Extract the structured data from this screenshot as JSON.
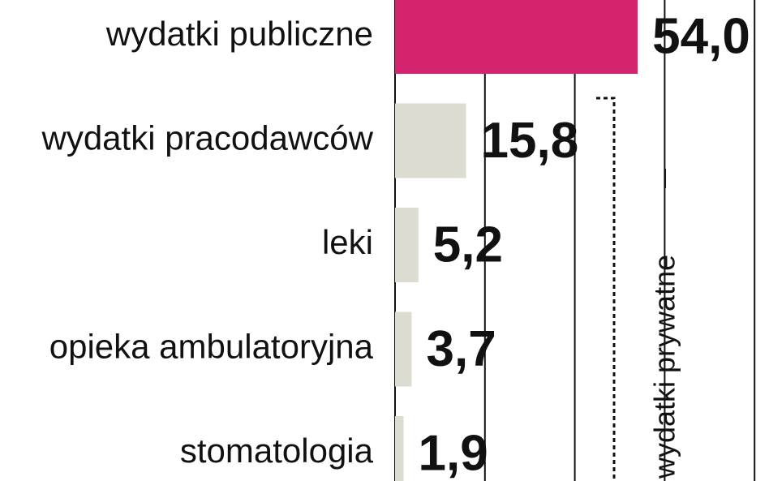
{
  "chart_data": {
    "type": "barh",
    "categories": [
      "wydatki publiczne",
      "wydatki pracodawców",
      "leki",
      "opieka ambulatoryjna",
      "stomatologia"
    ],
    "values": [
      54.0,
      15.8,
      5.2,
      3.7,
      1.9
    ],
    "value_labels": [
      "54,0",
      "15,8",
      "5,2",
      "3,7",
      "1,9"
    ],
    "colors": [
      "#d4246e",
      "#dcdcd0",
      "#dcdcd0",
      "#dcdcd0",
      "#dcdcd0"
    ],
    "xlim": [
      0,
      83
    ],
    "xticks": [
      0,
      20,
      40,
      60,
      80
    ],
    "grid": true,
    "annotation": "wydatki prywatne"
  }
}
